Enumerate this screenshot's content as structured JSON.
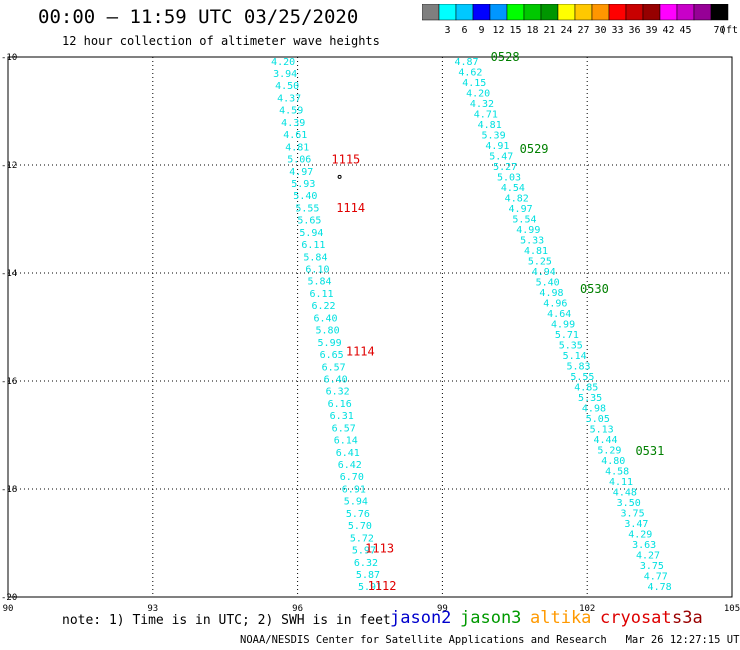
{
  "header": {
    "title": "00:00 – 11:59 UTC 03/25/2020",
    "subtitle": "12 hour collection of altimeter wave heights"
  },
  "scale": {
    "colors": [
      "#7f7f7f",
      "#00ffff",
      "#00c8ff",
      "#0000ff",
      "#0096ff",
      "#00ff00",
      "#00c800",
      "#009600",
      "#ffff00",
      "#ffc800",
      "#ff9600",
      "#ff0000",
      "#c80000",
      "#960000",
      "#ff00ff",
      "#c800c8",
      "#960096",
      "#000000"
    ],
    "labels": [
      "3",
      "6",
      "9",
      "12",
      "15",
      "18",
      "21",
      "24",
      "27",
      "30",
      "33",
      "36",
      "39",
      "42",
      "45",
      "70"
    ],
    "unit": "(ft)"
  },
  "axes": {
    "lon_ticks": [
      "90",
      "93",
      "96",
      "99",
      "102",
      "105"
    ],
    "lat_ticks": [
      "-10",
      "-12",
      "-14",
      "-16",
      "-18",
      "-20"
    ],
    "lon_range": [
      90,
      105
    ],
    "lat_range": [
      -20,
      -10
    ]
  },
  "tracks": [
    {
      "satellite": "cyan-west",
      "color": "#00e0e0",
      "start": [
        95.7,
        -10.07
      ],
      "end": [
        97.5,
        -19.8
      ],
      "values": [
        "4.20",
        "3.94",
        "4.50",
        "4.37",
        "4.59",
        "4.39",
        "4.61",
        "4.81",
        "5.06",
        "4.97",
        "5.93",
        "5.40",
        "5.55",
        "5.65",
        "5.94",
        "6.11",
        "5.84",
        "6.10",
        "5.84",
        "6.11",
        "6.22",
        "6.40",
        "5.80",
        "5.99",
        "6.65",
        "6.57",
        "6.40",
        "6.32",
        "6.16",
        "6.31",
        "6.57",
        "6.14",
        "6.41",
        "6.42",
        "6.70",
        "6.91",
        "5.94",
        "5.76",
        "5.70",
        "5.72",
        "5.97",
        "6.32",
        "5.87",
        "5.91"
      ]
    },
    {
      "satellite": "cyan-east",
      "color": "#00e0e0",
      "start": [
        99.5,
        -10.07
      ],
      "end": [
        103.5,
        -19.8
      ],
      "values": [
        "4.87",
        "4.62",
        "4.15",
        "4.20",
        "4.32",
        "4.71",
        "4.81",
        "5.39",
        "4.91",
        "5.47",
        "5.27",
        "5.03",
        "4.54",
        "4.82",
        "4.97",
        "5.54",
        "4.99",
        "5.33",
        "4.81",
        "5.25",
        "4.94",
        "5.40",
        "4.98",
        "4.96",
        "4.64",
        "4.99",
        "5.71",
        "5.35",
        "5.14",
        "5.83",
        "5.55",
        "4.85",
        "5.35",
        "4.98",
        "5.05",
        "5.13",
        "4.44",
        "5.29",
        "4.80",
        "4.58",
        "4.11",
        "4.48",
        "3.50",
        "3.75",
        "3.47",
        "4.29",
        "3.63",
        "4.27",
        "3.75",
        "4.77",
        "4.78"
      ]
    }
  ],
  "time_labels": [
    {
      "text": "1115",
      "color": "#e00000",
      "lon": 96.7,
      "lat": -11.9
    },
    {
      "text": "1114",
      "color": "#e00000",
      "lon": 96.8,
      "lat": -12.8
    },
    {
      "text": "1114",
      "color": "#e00000",
      "lon": 97.0,
      "lat": -15.45
    },
    {
      "text": "1113",
      "color": "#e00000",
      "lon": 97.4,
      "lat": -19.1
    },
    {
      "text": "1112",
      "color": "#e00000",
      "lon": 97.45,
      "lat": -19.8
    },
    {
      "text": "0528",
      "color": "#008000",
      "lon": 100.0,
      "lat": -10.0
    },
    {
      "text": "0529",
      "color": "#008000",
      "lon": 100.6,
      "lat": -11.7
    },
    {
      "text": "0530",
      "color": "#008000",
      "lon": 101.85,
      "lat": -14.3
    },
    {
      "text": "0531",
      "color": "#008000",
      "lon": 103.0,
      "lat": -17.3
    }
  ],
  "note": "note: 1) Time is in UTC; 2) SWH is in feet",
  "legend": [
    {
      "name": "jason2",
      "color": "#0000cc"
    },
    {
      "name": "jason3",
      "color": "#009900"
    },
    {
      "name": "altika",
      "color": "#ff9900"
    },
    {
      "name": "cryosat",
      "color": "#dd0000"
    },
    {
      "name": "s3a",
      "color": "#990000"
    }
  ],
  "credit": "NOAA/NESDIS Center for Satellite Applications and Research   Mar 26 12:27:15 UTC 2020"
}
